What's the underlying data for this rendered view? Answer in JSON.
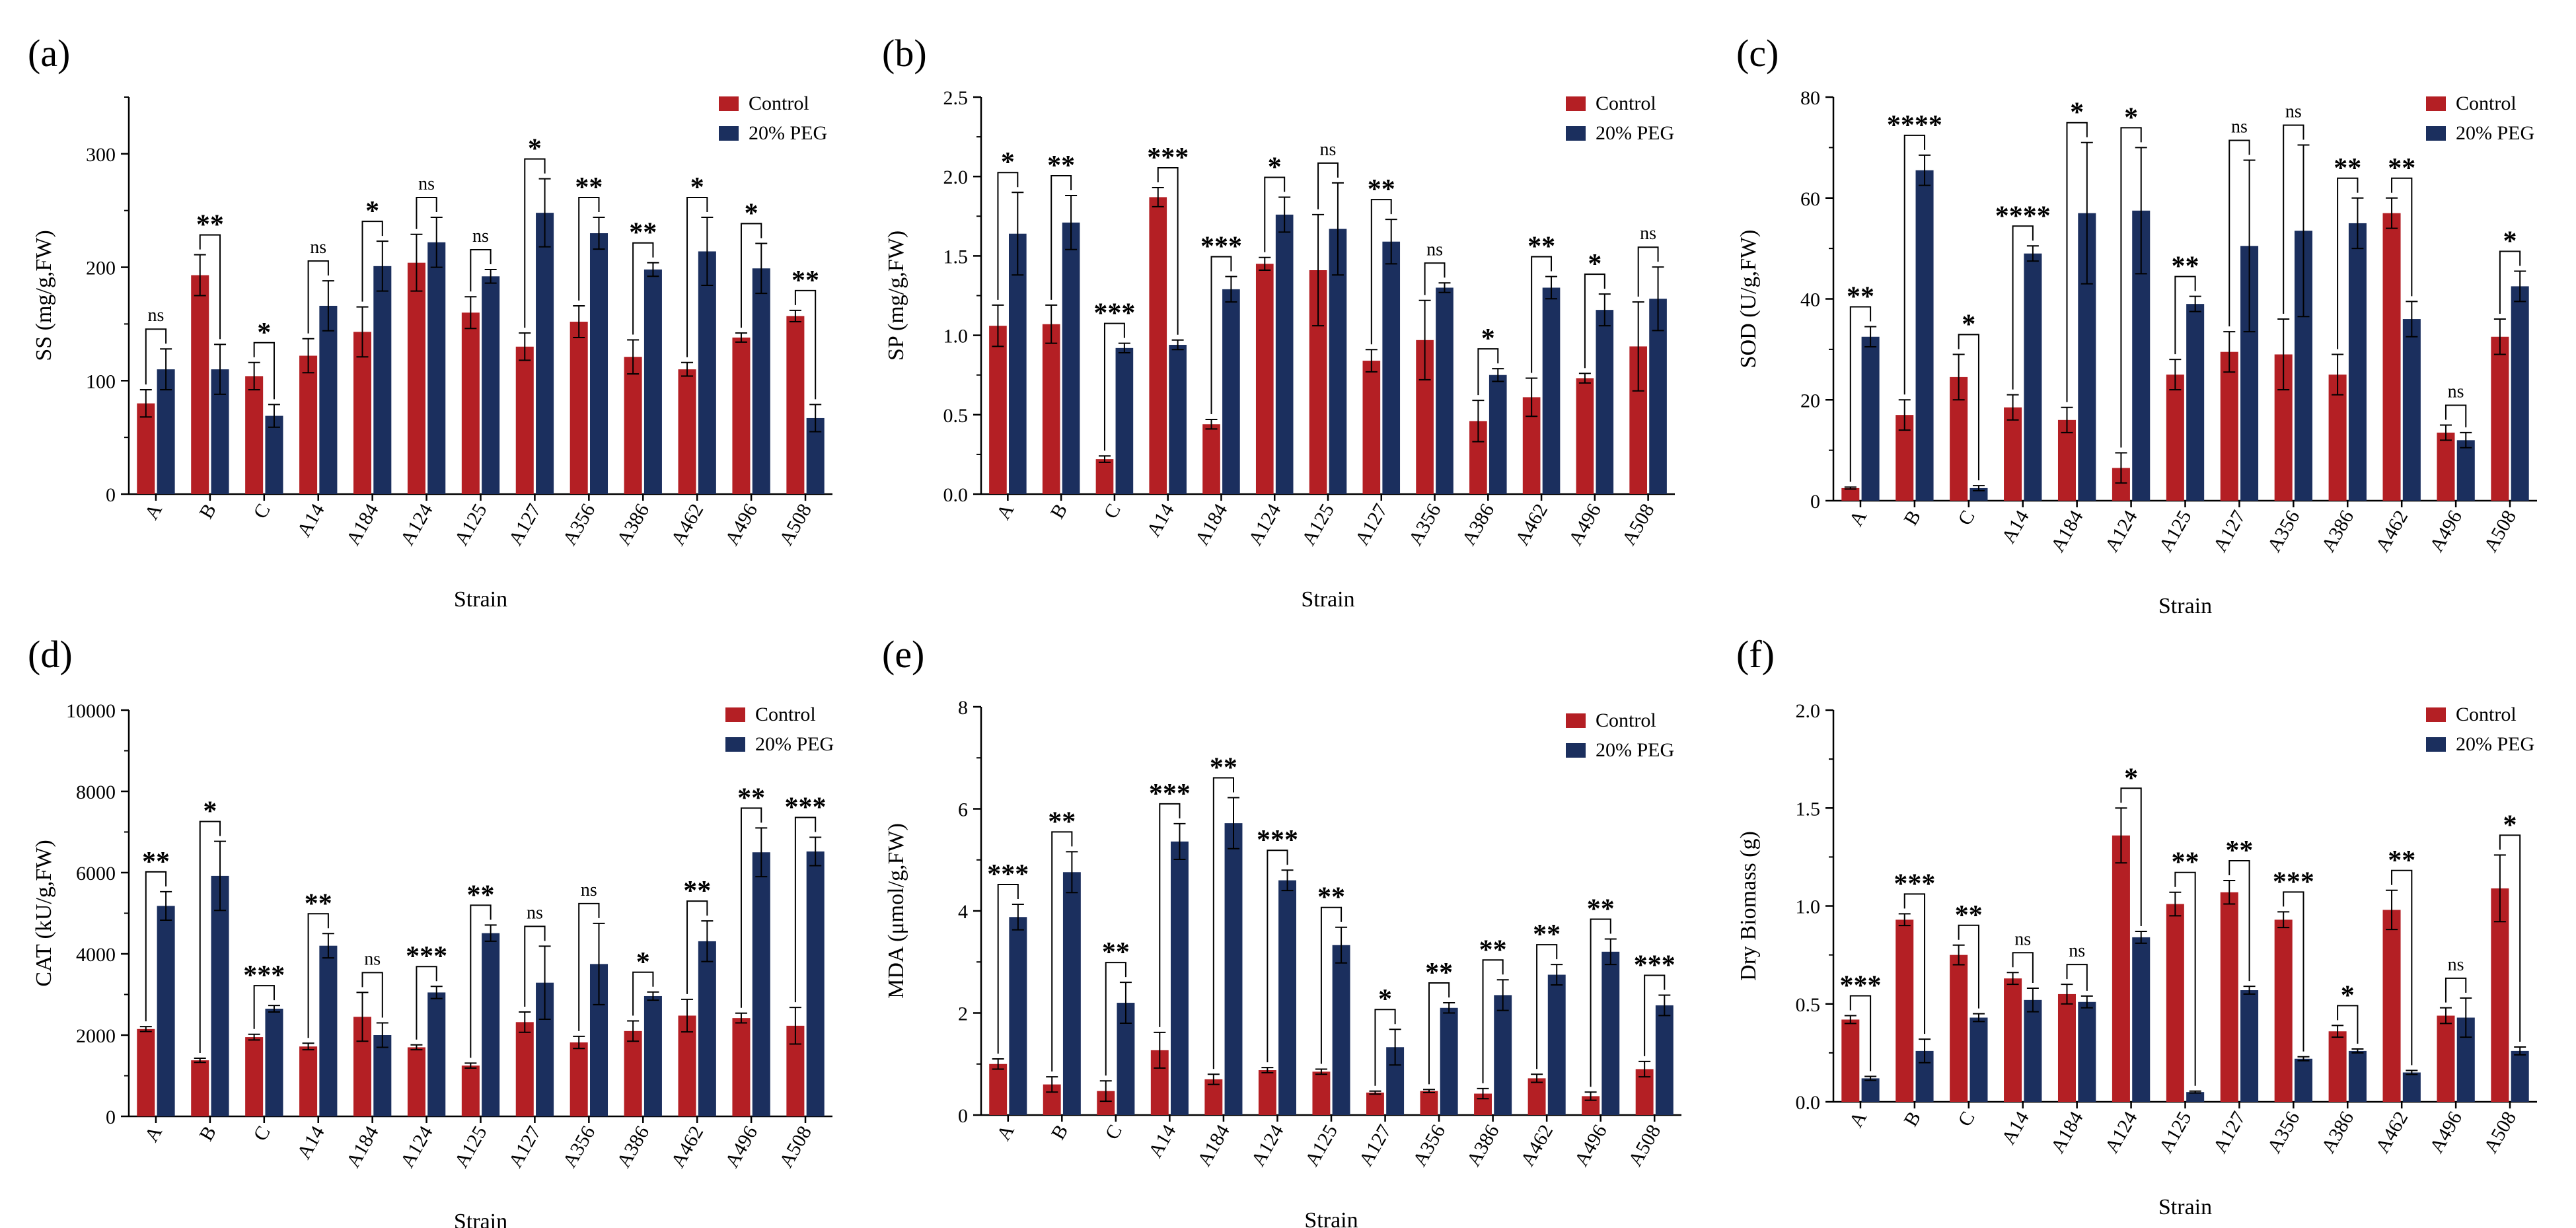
{
  "figure": {
    "colors": {
      "control": "#b41f24",
      "peg": "#1b2f5e",
      "axis": "#000000"
    },
    "categories": [
      "A",
      "B",
      "C",
      "A14",
      "A184",
      "A124",
      "A125",
      "A127",
      "A356",
      "A386",
      "A462",
      "A496",
      "A508"
    ]
  },
  "chart_data": [
    {
      "type": "bar",
      "panel_label": "(a)",
      "title": "",
      "xlabel": "Strain",
      "ylabel": "SS (mg/g,FW)",
      "ylim": [
        0,
        350
      ],
      "yticks": [
        0,
        100,
        200,
        300
      ],
      "legend_position": "top-right",
      "categories": [
        "A",
        "B",
        "C",
        "A14",
        "A184",
        "A124",
        "A125",
        "A127",
        "A356",
        "A386",
        "A462",
        "A496",
        "A508"
      ],
      "series": [
        {
          "name": "Control",
          "values": [
            80,
            193,
            104,
            122,
            143,
            204,
            160,
            130,
            152,
            121,
            110,
            138,
            157
          ],
          "errors": [
            12,
            18,
            12,
            15,
            22,
            25,
            14,
            12,
            14,
            15,
            6,
            4,
            5
          ]
        },
        {
          "name": "20% PEG",
          "values": [
            110,
            110,
            69,
            166,
            201,
            222,
            192,
            248,
            230,
            198,
            214,
            199,
            67
          ],
          "errors": [
            18,
            22,
            10,
            22,
            22,
            22,
            6,
            30,
            14,
            6,
            30,
            22,
            12
          ]
        }
      ],
      "significance": [
        "ns",
        "**",
        "*",
        "ns",
        "*",
        "ns",
        "ns",
        "*",
        "**",
        "**",
        "*",
        "*",
        "**"
      ]
    },
    {
      "type": "bar",
      "panel_label": "(b)",
      "title": "",
      "xlabel": "Strain",
      "ylabel": "SP (mg/g,FW)",
      "ylim": [
        0,
        2.5
      ],
      "yticks": [
        0.0,
        0.5,
        1.0,
        1.5,
        2.0,
        2.5
      ],
      "legend_position": "top-right",
      "categories": [
        "A",
        "B",
        "C",
        "A14",
        "A184",
        "A124",
        "A125",
        "A127",
        "A356",
        "A386",
        "A462",
        "A496",
        "A508"
      ],
      "series": [
        {
          "name": "Control",
          "values": [
            1.06,
            1.07,
            0.22,
            1.87,
            0.44,
            1.45,
            1.41,
            0.84,
            0.97,
            0.46,
            0.61,
            0.73,
            0.93
          ],
          "errors": [
            0.13,
            0.12,
            0.02,
            0.06,
            0.03,
            0.04,
            0.35,
            0.07,
            0.25,
            0.13,
            0.12,
            0.03,
            0.28
          ]
        },
        {
          "name": "20% PEG",
          "values": [
            1.64,
            1.71,
            0.92,
            0.94,
            1.29,
            1.76,
            1.67,
            1.59,
            1.3,
            0.75,
            1.3,
            1.16,
            1.23
          ],
          "errors": [
            0.26,
            0.17,
            0.03,
            0.03,
            0.08,
            0.11,
            0.29,
            0.14,
            0.03,
            0.04,
            0.07,
            0.1,
            0.2
          ]
        }
      ],
      "significance": [
        "*",
        "**",
        "***",
        "***",
        "***",
        "*",
        "ns",
        "**",
        "ns",
        "*",
        "**",
        "*",
        "ns"
      ]
    },
    {
      "type": "bar",
      "panel_label": "(c)",
      "title": "",
      "xlabel": "Strain",
      "ylabel": "SOD (U/g,FW)",
      "ylim": [
        0,
        80
      ],
      "yticks": [
        0,
        20,
        40,
        60,
        80
      ],
      "legend_position": "top-right",
      "categories": [
        "A",
        "B",
        "C",
        "A14",
        "A184",
        "A124",
        "A125",
        "A127",
        "A356",
        "A386",
        "A462",
        "A496",
        "A508"
      ],
      "series": [
        {
          "name": "Control",
          "values": [
            2.5,
            17,
            24.5,
            18.5,
            16,
            6.5,
            25,
            29.5,
            29,
            25,
            57,
            13.5,
            32.5
          ],
          "errors": [
            0.2,
            3,
            4.5,
            2.5,
            2.5,
            3,
            3,
            4,
            7,
            4,
            3,
            1.5,
            3.5
          ]
        },
        {
          "name": "20% PEG",
          "values": [
            32.5,
            65.5,
            2.5,
            49,
            57,
            57.5,
            39,
            50.5,
            53.5,
            55,
            36,
            12,
            42.5
          ],
          "errors": [
            2,
            3,
            0.5,
            1.5,
            14,
            12.5,
            1.5,
            17,
            17,
            5,
            3.5,
            1.5,
            3
          ]
        }
      ],
      "significance": [
        "**",
        "****",
        "*",
        "****",
        "*",
        "*",
        "**",
        "ns",
        "ns",
        "**",
        "**",
        "ns",
        "*"
      ]
    },
    {
      "type": "bar",
      "panel_label": "(d)",
      "title": "",
      "xlabel": "Strain",
      "ylabel": "CAT (kU/g,FW)",
      "ylim": [
        0,
        10000
      ],
      "yticks": [
        0,
        2000,
        4000,
        6000,
        8000,
        10000
      ],
      "legend_position": "top-right",
      "categories": [
        "A",
        "B",
        "C",
        "A14",
        "A184",
        "A124",
        "A125",
        "A127",
        "A356",
        "A386",
        "A462",
        "A496",
        "A508"
      ],
      "series": [
        {
          "name": "Control",
          "values": [
            2150,
            1380,
            1950,
            1720,
            2450,
            1700,
            1250,
            2320,
            1820,
            2100,
            2480,
            2420,
            2230
          ],
          "errors": [
            60,
            50,
            70,
            80,
            600,
            60,
            60,
            250,
            150,
            250,
            400,
            120,
            450
          ]
        },
        {
          "name": "20% PEG",
          "values": [
            5180,
            5920,
            2650,
            4200,
            2000,
            3050,
            4510,
            3290,
            3750,
            2960,
            4310,
            6500,
            6520
          ],
          "errors": [
            350,
            850,
            80,
            300,
            300,
            150,
            200,
            900,
            1000,
            100,
            500,
            600,
            350
          ]
        }
      ],
      "significance": [
        "**",
        "*",
        "***",
        "**",
        "ns",
        "***",
        "**",
        "ns",
        "ns",
        "*",
        "**",
        "**",
        "***"
      ]
    },
    {
      "type": "bar",
      "panel_label": "(e)",
      "title": "",
      "xlabel": "Strain",
      "ylabel": "MDA (μmol/g,FW)",
      "ylim": [
        0,
        8
      ],
      "yticks": [
        0,
        2,
        4,
        6,
        8
      ],
      "legend_position": "top-right",
      "categories": [
        "A",
        "B",
        "C",
        "A14",
        "A184",
        "A124",
        "A125",
        "A127",
        "A356",
        "A386",
        "A462",
        "A496",
        "A508"
      ],
      "series": [
        {
          "name": "Control",
          "values": [
            1.0,
            0.6,
            0.47,
            1.27,
            0.7,
            0.88,
            0.85,
            0.44,
            0.47,
            0.42,
            0.72,
            0.37,
            0.9
          ],
          "errors": [
            0.1,
            0.15,
            0.2,
            0.35,
            0.1,
            0.05,
            0.05,
            0.03,
            0.03,
            0.1,
            0.08,
            0.08,
            0.15
          ]
        },
        {
          "name": "20% PEG",
          "values": [
            3.88,
            4.76,
            2.2,
            5.36,
            5.72,
            4.6,
            3.33,
            1.33,
            2.1,
            2.35,
            2.75,
            3.2,
            2.15
          ],
          "errors": [
            0.25,
            0.4,
            0.4,
            0.35,
            0.5,
            0.2,
            0.35,
            0.35,
            0.1,
            0.3,
            0.2,
            0.25,
            0.2
          ]
        }
      ],
      "significance": [
        "***",
        "**",
        "**",
        "***",
        "**",
        "***",
        "**",
        "*",
        "**",
        "**",
        "**",
        "**",
        "***"
      ]
    },
    {
      "type": "bar",
      "panel_label": "(f)",
      "title": "",
      "xlabel": "Strain",
      "ylabel": "Dry Biomass (g)",
      "ylim": [
        0,
        2.0
      ],
      "yticks": [
        0.0,
        0.5,
        1.0,
        1.5,
        2.0
      ],
      "legend_position": "top-right",
      "categories": [
        "A",
        "B",
        "C",
        "A14",
        "A184",
        "A124",
        "A125",
        "A127",
        "A356",
        "A386",
        "A462",
        "A496",
        "A508"
      ],
      "series": [
        {
          "name": "Control",
          "values": [
            0.42,
            0.93,
            0.75,
            0.63,
            0.55,
            1.36,
            1.01,
            1.07,
            0.93,
            0.36,
            0.98,
            0.44,
            1.09
          ],
          "errors": [
            0.02,
            0.03,
            0.05,
            0.03,
            0.05,
            0.14,
            0.06,
            0.06,
            0.04,
            0.03,
            0.1,
            0.04,
            0.17
          ]
        },
        {
          "name": "20% PEG",
          "values": [
            0.12,
            0.26,
            0.43,
            0.52,
            0.51,
            0.84,
            0.05,
            0.57,
            0.22,
            0.26,
            0.15,
            0.43,
            0.26
          ],
          "errors": [
            0.01,
            0.06,
            0.02,
            0.06,
            0.03,
            0.03,
            0.005,
            0.02,
            0.01,
            0.01,
            0.01,
            0.1,
            0.02
          ]
        }
      ],
      "significance": [
        "***",
        "***",
        "**",
        "ns",
        "ns",
        "*",
        "**",
        "**",
        "***",
        "*",
        "**",
        "ns",
        "*"
      ]
    }
  ]
}
